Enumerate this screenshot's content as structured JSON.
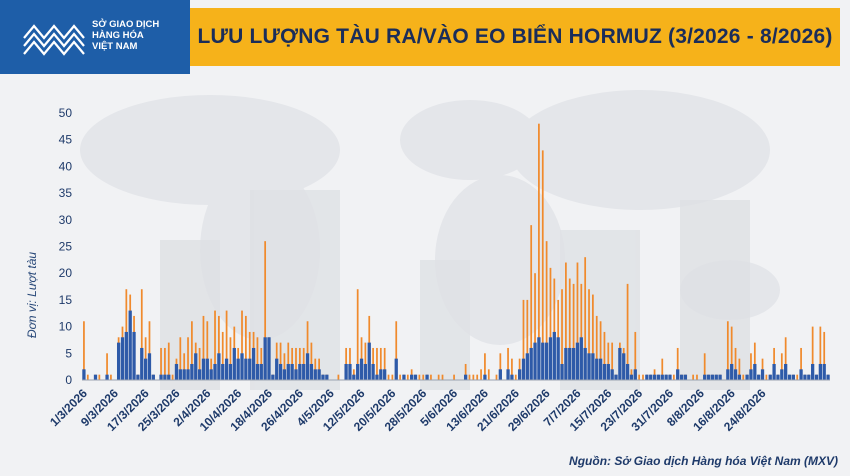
{
  "header": {
    "title": "LƯU LƯỢNG TÀU RA/VÀO EO BIỂN HORMUZ (3/2026 - 8/2026)",
    "brand_line1": "SỞ GIAO DỊCH",
    "brand_line2": "HÀNG HÓA",
    "brand_line3": "VIỆT NAM",
    "brand_color": "#1e5ea8",
    "accent_color": "#f6b21a"
  },
  "footer": {
    "source": "Nguồn: Sở Giao dịch Hàng hóa Việt Nam (MXV)"
  },
  "chart_data": {
    "type": "bar",
    "title": "LƯU LƯỢNG TÀU RA/VÀO EO BIỂN HORMUZ (3/2026 - 8/2026)",
    "ylabel": "Đơn vị: Lượt tàu",
    "xlabel": "",
    "ylim": [
      0,
      50
    ],
    "yticks": [
      0,
      5,
      10,
      15,
      20,
      25,
      30,
      35,
      40,
      45,
      50
    ],
    "grid": false,
    "legend": "none",
    "x_tick_labels": [
      "1/3/2026",
      "9/3/2026",
      "17/3/2026",
      "25/3/2026",
      "2/4/2026",
      "10/4/2026",
      "18/4/2026",
      "26/4/2026",
      "4/5/2026",
      "12/5/2026",
      "20/5/2026",
      "28/5/2026",
      "5/6/2026",
      "13/6/2026",
      "21/6/2026",
      "29/6/2026",
      "7/7/2026",
      "15/7/2026",
      "23/7/2026",
      "31/7/2026",
      "8/8/2026",
      "16/8/2026",
      "24/8/2026"
    ],
    "x_tick_every": 8,
    "colors": [
      "#f08a2c",
      "#2e5aa8"
    ],
    "series": [
      {
        "values": [
          11,
          1,
          0,
          1,
          1,
          0,
          5,
          1,
          0,
          8,
          10,
          17,
          16,
          12,
          1,
          17,
          8,
          11,
          1,
          0,
          6,
          6,
          7,
          1,
          4,
          8,
          5,
          8,
          11,
          7,
          6,
          12,
          11,
          4,
          13,
          12,
          9,
          13,
          8,
          10,
          6,
          13,
          12,
          9,
          9,
          8,
          6,
          26,
          8,
          1,
          7,
          7,
          5,
          7,
          6,
          6,
          6,
          6,
          11,
          7,
          4,
          4,
          1,
          1,
          0,
          0,
          1,
          0,
          6,
          6,
          2,
          17,
          8,
          7,
          12,
          6,
          6,
          6,
          6,
          1,
          1,
          11,
          1,
          1,
          1,
          2,
          1,
          1,
          1,
          1,
          1,
          0,
          1,
          1,
          0,
          0,
          1,
          0,
          0,
          3,
          1,
          1,
          1,
          2,
          5,
          2,
          0,
          1,
          5,
          0,
          6,
          4,
          1,
          4,
          15,
          15,
          29,
          20,
          48,
          43,
          26,
          21,
          19,
          15,
          17,
          22,
          19,
          18,
          22,
          18,
          23,
          17,
          16,
          12,
          11,
          9,
          7,
          7,
          1,
          7,
          6,
          18,
          2,
          9,
          1,
          1,
          1,
          1,
          2,
          1,
          4,
          1,
          1,
          1,
          6,
          1,
          1,
          0,
          1,
          1,
          0,
          5,
          1,
          1,
          1,
          1,
          0,
          11,
          10,
          6,
          4,
          1,
          1,
          5,
          7,
          1,
          4,
          1,
          1,
          6,
          1,
          5,
          8,
          1,
          1,
          1,
          6,
          1,
          1,
          10,
          1,
          10,
          9,
          1
        ]
      },
      {
        "values": [
          2,
          0,
          0,
          1,
          0,
          0,
          1,
          0,
          0,
          7,
          8,
          9,
          13,
          9,
          1,
          6,
          4,
          5,
          1,
          0,
          1,
          1,
          1,
          0,
          3,
          2,
          2,
          2,
          3,
          5,
          2,
          4,
          4,
          2,
          3,
          5,
          3,
          4,
          3,
          6,
          4,
          5,
          4,
          4,
          6,
          3,
          3,
          8,
          8,
          1,
          4,
          3,
          2,
          3,
          3,
          2,
          3,
          3,
          5,
          3,
          2,
          2,
          1,
          1,
          0,
          0,
          0,
          0,
          3,
          3,
          1,
          3,
          4,
          3,
          7,
          3,
          1,
          2,
          2,
          0,
          0,
          4,
          0,
          1,
          0,
          1,
          1,
          0,
          0,
          1,
          0,
          0,
          0,
          0,
          0,
          0,
          0,
          0,
          0,
          1,
          0,
          0,
          0,
          0,
          1,
          0,
          0,
          0,
          2,
          0,
          2,
          1,
          0,
          2,
          4,
          5,
          6,
          7,
          8,
          7,
          7,
          8,
          9,
          8,
          3,
          6,
          6,
          6,
          7,
          8,
          6,
          5,
          5,
          4,
          4,
          3,
          3,
          2,
          1,
          6,
          5,
          3,
          1,
          2,
          0,
          0,
          1,
          1,
          1,
          1,
          1,
          1,
          1,
          0,
          2,
          1,
          1,
          0,
          0,
          0,
          0,
          1,
          1,
          1,
          1,
          1,
          0,
          2,
          3,
          2,
          1,
          0,
          1,
          2,
          3,
          1,
          2,
          0,
          1,
          3,
          1,
          2,
          3,
          1,
          1,
          0,
          2,
          1,
          1,
          3,
          1,
          3,
          3,
          1
        ]
      }
    ]
  }
}
